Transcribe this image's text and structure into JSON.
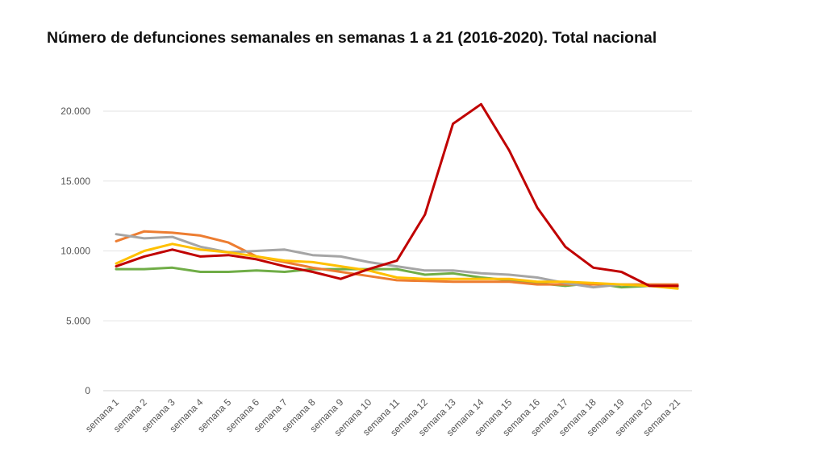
{
  "chart_data": {
    "type": "line",
    "title": "Número de defunciones semanales en semanas 1 a 21 (2016-2020). Total nacional",
    "xlabel": "",
    "ylabel": "",
    "ylim": [
      0,
      20000
    ],
    "yticks": [
      0,
      5000,
      10000,
      15000,
      20000
    ],
    "ytick_labels": [
      "0",
      "5.000",
      "10.000",
      "15.000",
      "20.000"
    ],
    "grid": true,
    "categories": [
      "semana 1",
      "semana 2",
      "semana 3",
      "semana 4",
      "semana 5",
      "semana 6",
      "semana 7",
      "semana 8",
      "semana 9",
      "semana 10",
      "semana 11",
      "semana 12",
      "semana 13",
      "semana 14",
      "semana 15",
      "semana 16",
      "semana 17",
      "semana 18",
      "semana 19",
      "semana 20",
      "semana 21"
    ],
    "series": [
      {
        "color": "#70ad47",
        "values": [
          8700,
          8700,
          8800,
          8500,
          8500,
          8600,
          8500,
          8700,
          8700,
          8700,
          8700,
          8300,
          8400,
          8100,
          7900,
          7700,
          7500,
          7700,
          7400,
          7500,
          7500
        ]
      },
      {
        "color": "#ed7d31",
        "values": [
          10700,
          11400,
          11300,
          11100,
          10600,
          9600,
          9200,
          8800,
          8500,
          8200,
          7900,
          7850,
          7800,
          7800,
          7800,
          7600,
          7600,
          7600,
          7600,
          7600,
          7600
        ]
      },
      {
        "color": "#a5a5a5",
        "values": [
          11200,
          10900,
          11000,
          10300,
          9900,
          10000,
          10100,
          9700,
          9600,
          9200,
          8900,
          8600,
          8600,
          8400,
          8300,
          8100,
          7700,
          7400,
          7600,
          7500,
          7400
        ]
      },
      {
        "color": "#ffc000",
        "values": [
          9100,
          10000,
          10500,
          10100,
          9900,
          9600,
          9300,
          9200,
          8900,
          8600,
          8100,
          8000,
          8000,
          8000,
          8000,
          7800,
          7800,
          7700,
          7600,
          7500,
          7300
        ]
      },
      {
        "color": "#c00000",
        "values": [
          8900,
          9600,
          10100,
          9600,
          9700,
          9400,
          8900,
          8500,
          8000,
          8700,
          9300,
          12600,
          19100,
          20500,
          17200,
          13100,
          10300,
          8800,
          8500,
          7500,
          7500
        ]
      }
    ]
  }
}
